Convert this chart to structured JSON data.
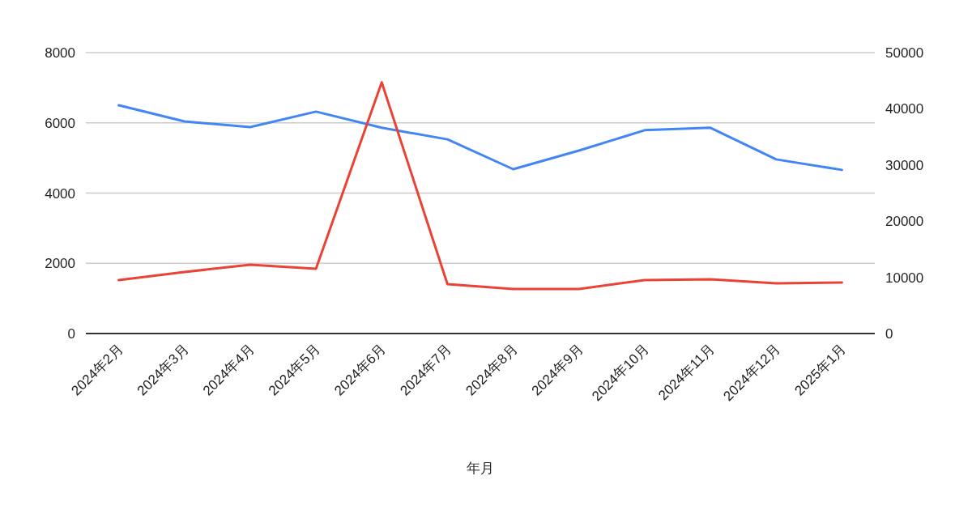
{
  "chart_data": {
    "type": "line",
    "xlabel": "年月",
    "categories": [
      "2024年2月",
      "2024年3月",
      "2024年4月",
      "2024年5月",
      "2024年6月",
      "2024年7月",
      "2024年8月",
      "2024年9月",
      "2024年10月",
      "2024年11月",
      "2024年12月",
      "2025年1月"
    ],
    "series": [
      {
        "color": "#4285f4",
        "values": [
          6500,
          6040,
          5880,
          6320,
          5860,
          5530,
          4680,
          5210,
          5790,
          5860,
          4960,
          4660
        ]
      },
      {
        "color": "#ea4335",
        "axis": "y2",
        "values": [
          9510,
          10950,
          12250,
          11530,
          44700,
          8790,
          7930,
          7930,
          9510,
          9650,
          8930,
          9080
        ]
      }
    ],
    "ylim": [
      0,
      8000
    ],
    "yticks": [
      0,
      2000,
      4000,
      6000,
      8000
    ],
    "y2lim": [
      0,
      50000
    ],
    "y2ticks": [
      0,
      10000,
      20000,
      30000,
      40000,
      50000
    ],
    "grid": "y"
  }
}
